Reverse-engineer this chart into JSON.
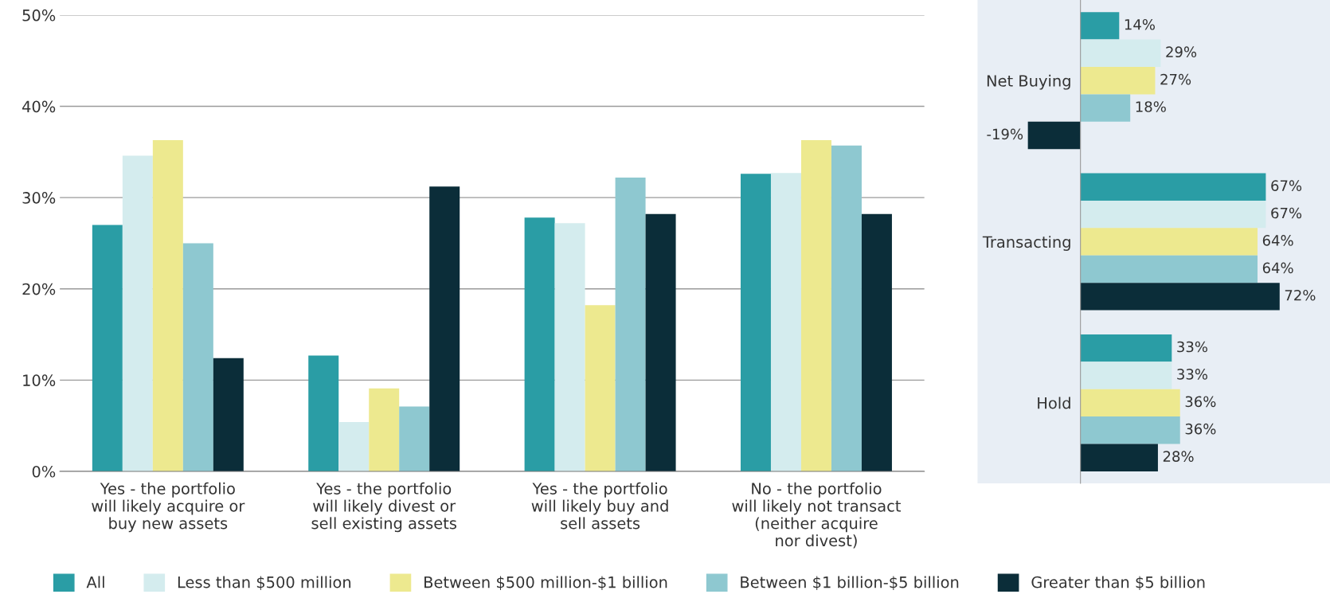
{
  "chart_data": [
    {
      "type": "bar",
      "categories": [
        "Yes - the portfolio\nwill likely acquire or\nbuy new assets",
        "Yes - the portfolio\nwill likely divest or\nsell existing assets",
        "Yes - the portfolio\nwill likely buy and\nsell assets",
        "No - the portfolio\nwill likely not transact\n(neither acquire\nnor divest)"
      ],
      "series": [
        {
          "name": "All",
          "color": "#2a9da5",
          "values": [
            27.0,
            12.7,
            27.8,
            32.6
          ]
        },
        {
          "name": "Less than $500 million",
          "color": "#d4ecee",
          "values": [
            34.6,
            5.4,
            27.2,
            32.7
          ]
        },
        {
          "name": "Between $500 million-$1 billion",
          "color": "#ede98f",
          "values": [
            36.3,
            9.1,
            18.2,
            36.3
          ]
        },
        {
          "name": "Between $1 billion-$5 billion",
          "color": "#8ec8d0",
          "values": [
            25.0,
            7.1,
            32.2,
            35.7
          ]
        },
        {
          "name": "Greater than $5 billion",
          "color": "#0b2d39",
          "values": [
            12.4,
            31.2,
            28.2,
            28.2
          ]
        }
      ],
      "ylim": [
        0,
        50
      ],
      "yticks": [
        {
          "value": 0,
          "label": "0%"
        },
        {
          "value": 10,
          "label": "10%"
        },
        {
          "value": 20,
          "label": "20%"
        },
        {
          "value": 30,
          "label": "30%"
        },
        {
          "value": 40,
          "label": "40%"
        },
        {
          "value": 50,
          "label": "50%"
        }
      ],
      "grid": "y",
      "legend": "bottom"
    },
    {
      "type": "bar",
      "orientation": "horizontal",
      "categories": [
        "Net Buying",
        "Transacting",
        "Hold"
      ],
      "series": [
        {
          "color": "#2a9da5",
          "values": [
            14,
            67,
            33
          ],
          "value_labels": [
            "14%",
            "67%",
            "33%"
          ]
        },
        {
          "color": "#d4ecee",
          "values": [
            29,
            67,
            33
          ],
          "value_labels": [
            "29%",
            "67%",
            "33%"
          ]
        },
        {
          "color": "#ede98f",
          "values": [
            27,
            64,
            36
          ],
          "value_labels": [
            "27%",
            "64%",
            "36%"
          ]
        },
        {
          "color": "#8ec8d0",
          "values": [
            18,
            64,
            36
          ],
          "value_labels": [
            "18%",
            "64%",
            "36%"
          ]
        },
        {
          "color": "#0b2d39",
          "values": [
            -19,
            72,
            28
          ],
          "value_labels": [
            "-19%",
            "72%",
            "28%"
          ]
        }
      ],
      "tick_labels": "y"
    }
  ]
}
